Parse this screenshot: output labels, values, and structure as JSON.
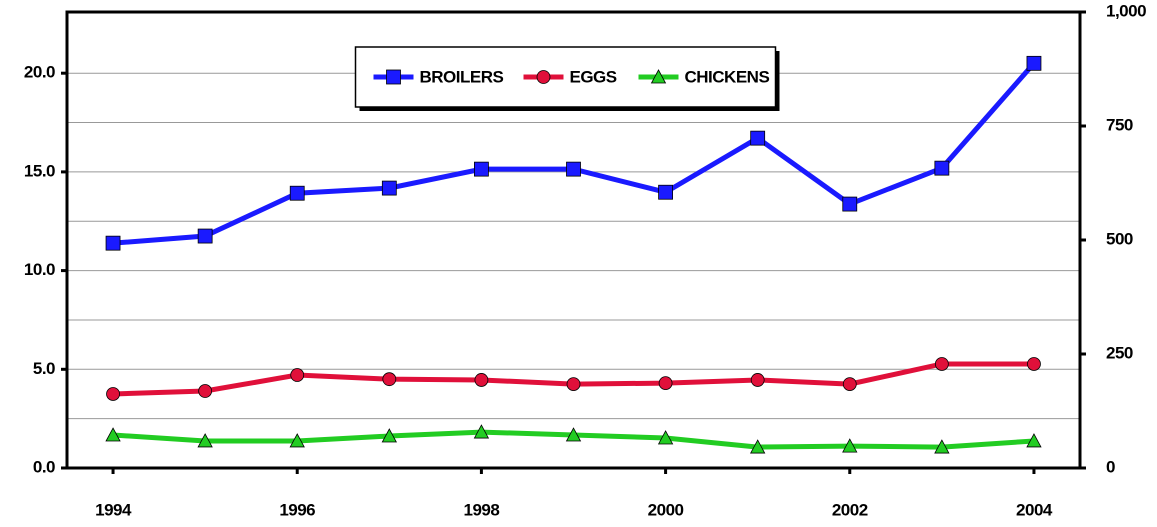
{
  "chart_data": {
    "type": "line",
    "x": [
      1994,
      1995,
      1996,
      1997,
      1998,
      1999,
      2000,
      2001,
      2002,
      2003,
      2004
    ],
    "xlim": [
      1993.5,
      2004.5
    ],
    "xticks": [
      1994,
      1996,
      1998,
      2000,
      2002,
      2004
    ],
    "series": [
      {
        "name": "BROILERS",
        "color": "#1a1aff",
        "marker": "square",
        "values": [
          11.39,
          11.75,
          13.92,
          14.18,
          15.14,
          15.14,
          13.97,
          16.71,
          13.37,
          15.19,
          20.5
        ]
      },
      {
        "name": "EGGS",
        "color": "#e0103a",
        "marker": "circle",
        "values": [
          3.75,
          3.9,
          4.71,
          4.5,
          4.46,
          4.25,
          4.3,
          4.46,
          4.25,
          5.27,
          5.27
        ]
      },
      {
        "name": "CHICKENS",
        "color": "#22cc22",
        "marker": "triangle",
        "values": [
          1.67,
          1.37,
          1.37,
          1.62,
          1.82,
          1.67,
          1.52,
          1.06,
          1.11,
          1.06,
          1.37
        ]
      }
    ],
    "ylim": [
      0,
      23.1
    ],
    "yticks": [
      {
        "value": 0,
        "label": "0.0"
      },
      {
        "value": 5,
        "label": "5.0"
      },
      {
        "value": 10,
        "label": "10.0"
      },
      {
        "value": 15,
        "label": "15.0"
      },
      {
        "value": 20,
        "label": "20.0"
      }
    ],
    "minor_yticks": [
      2.5,
      7.5,
      12.5,
      17.5
    ],
    "y2lim": [
      0,
      1000
    ],
    "y2ticks": [
      0,
      250,
      500,
      750,
      {
        "value": 1000,
        "label": "1,000"
      }
    ],
    "grid": true,
    "legend": "top-center"
  }
}
